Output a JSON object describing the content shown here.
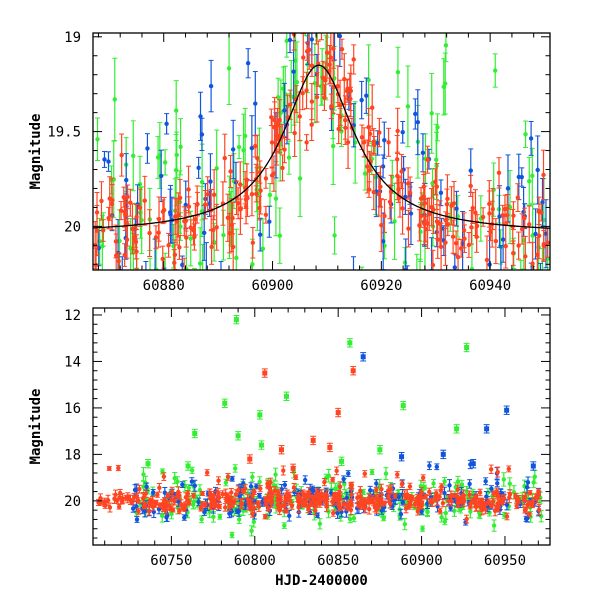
{
  "colors": {
    "green": "#33ee33",
    "blue": "#1155dd",
    "red": "#ff4422",
    "model": "#000000"
  },
  "chart_data": [
    {
      "id": "top",
      "type": "scatter",
      "title": "",
      "xlabel": "",
      "ylabel": "Magnitude",
      "xlim": [
        60867,
        60951
      ],
      "ylim": [
        20.23,
        18.98
      ],
      "y_inverted": true,
      "xticks": [
        60880,
        60900,
        60920,
        60940
      ],
      "xtick_labels": [
        "60880",
        "60900",
        "60920",
        "60940"
      ],
      "yticks": [
        19,
        19.5,
        20
      ],
      "ytick_labels": [
        "19",
        "19.5",
        "20"
      ],
      "model_curve": {
        "t0": 60908.5,
        "m_base": 20.04,
        "m_peak": 19.15,
        "tE": 8
      },
      "series": [
        {
          "name": "green",
          "color": "#33ee33",
          "count": 150,
          "x_range": [
            60867,
            60951
          ],
          "scatter_sigma": 0.35,
          "err_range": [
            0.06,
            0.22
          ]
        },
        {
          "name": "blue",
          "color": "#1155dd",
          "count": 110,
          "x_range": [
            60867,
            60951
          ],
          "scatter_sigma": 0.28,
          "err_range": [
            0.04,
            0.18
          ]
        },
        {
          "name": "red",
          "color": "#ff4422",
          "count": 260,
          "x_range": [
            60867,
            60951
          ],
          "scatter_sigma": 0.14,
          "err_range": [
            0.04,
            0.14
          ]
        }
      ]
    },
    {
      "id": "bottom",
      "type": "scatter",
      "title": "",
      "xlabel": "HJD-2400000",
      "ylabel": "Magnitude",
      "xlim": [
        60703,
        60977
      ],
      "ylim": [
        21.9,
        11.7
      ],
      "y_inverted": true,
      "xticks": [
        60750,
        60800,
        60850,
        60900,
        60950
      ],
      "xtick_labels": [
        "60750",
        "60800",
        "60850",
        "60900",
        "60950"
      ],
      "yticks": [
        12,
        14,
        16,
        18,
        20
      ],
      "ytick_labels": [
        "12",
        "14",
        "16",
        "18",
        "20"
      ],
      "series": [
        {
          "name": "green",
          "color": "#33ee33",
          "count": 230,
          "x_range": [
            60727,
            60972
          ],
          "scatter_sigma": 0.5,
          "err_range": [
            0.1,
            0.3
          ]
        },
        {
          "name": "blue",
          "color": "#1155dd",
          "count": 190,
          "x_range": [
            60727,
            60972
          ],
          "scatter_sigma": 0.4,
          "err_range": [
            0.1,
            0.25
          ]
        },
        {
          "name": "red",
          "color": "#ff4422",
          "count": 380,
          "x_range": [
            60706,
            60972
          ],
          "scatter_sigma": 0.25,
          "err_range": [
            0.08,
            0.22
          ]
        }
      ],
      "outliers": [
        {
          "series": "green",
          "x": 60789,
          "y": 12.2
        },
        {
          "series": "green",
          "x": 60857,
          "y": 13.2
        },
        {
          "series": "green",
          "x": 60927,
          "y": 13.4
        },
        {
          "series": "blue",
          "x": 60865,
          "y": 13.8
        },
        {
          "series": "red",
          "x": 60806,
          "y": 14.5
        },
        {
          "series": "red",
          "x": 60859,
          "y": 14.4
        },
        {
          "series": "green",
          "x": 60819,
          "y": 15.5
        },
        {
          "series": "green",
          "x": 60782,
          "y": 15.8
        },
        {
          "series": "green",
          "x": 60889,
          "y": 15.9
        },
        {
          "series": "blue",
          "x": 60951,
          "y": 16.1
        },
        {
          "series": "red",
          "x": 60850,
          "y": 16.2
        },
        {
          "series": "green",
          "x": 60803,
          "y": 16.3
        },
        {
          "series": "green",
          "x": 60921,
          "y": 16.9
        },
        {
          "series": "blue",
          "x": 60939,
          "y": 16.9
        },
        {
          "series": "green",
          "x": 60764,
          "y": 17.1
        },
        {
          "series": "green",
          "x": 60790,
          "y": 17.2
        },
        {
          "series": "red",
          "x": 60835,
          "y": 17.4
        },
        {
          "series": "green",
          "x": 60804,
          "y": 17.6
        },
        {
          "series": "red",
          "x": 60816,
          "y": 17.8
        },
        {
          "series": "red",
          "x": 60845,
          "y": 17.7
        },
        {
          "series": "green",
          "x": 60875,
          "y": 17.8
        },
        {
          "series": "blue",
          "x": 60888,
          "y": 18.1
        },
        {
          "series": "green",
          "x": 60736,
          "y": 18.4
        },
        {
          "series": "red",
          "x": 60797,
          "y": 18.2
        },
        {
          "series": "green",
          "x": 60852,
          "y": 18.3
        },
        {
          "series": "blue",
          "x": 60913,
          "y": 18.0
        },
        {
          "series": "green",
          "x": 60760,
          "y": 18.5
        },
        {
          "series": "red",
          "x": 60823,
          "y": 18.6
        },
        {
          "series": "blue",
          "x": 60931,
          "y": 18.4
        },
        {
          "series": "blue",
          "x": 60967,
          "y": 18.5
        }
      ]
    }
  ]
}
